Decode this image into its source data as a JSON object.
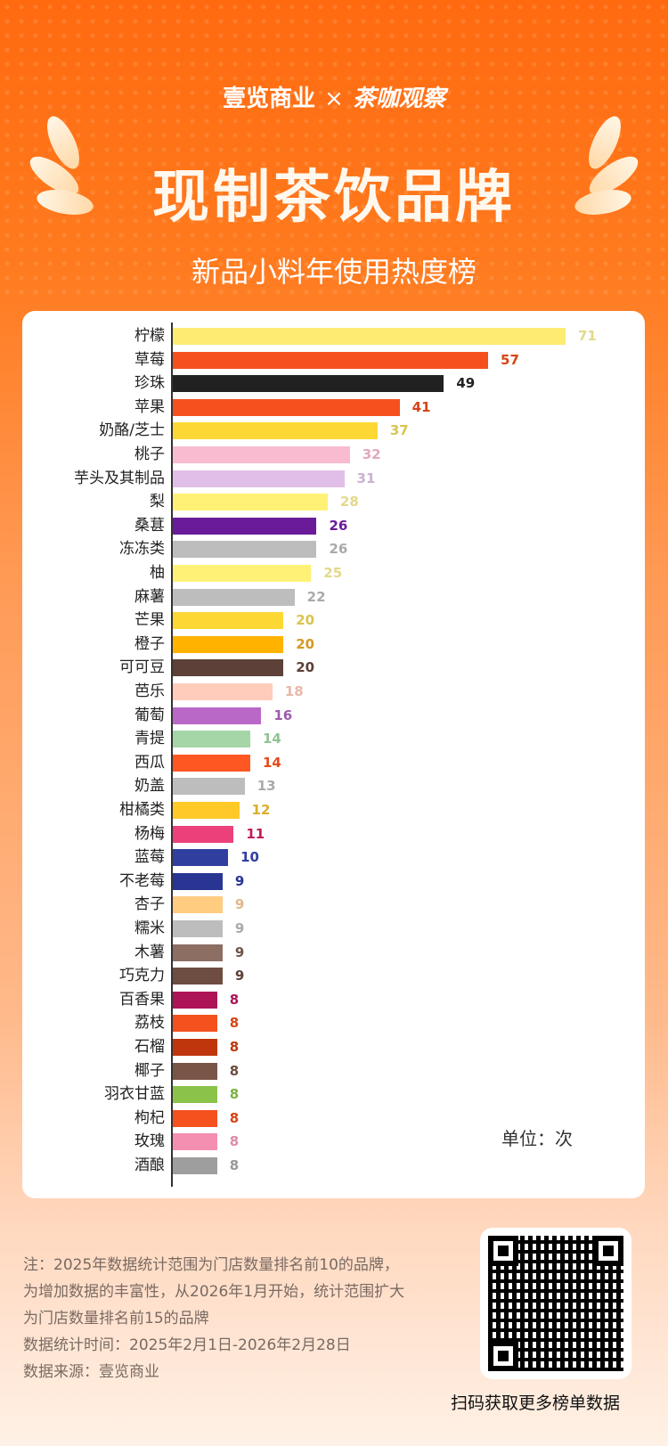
{
  "header": {
    "brand_left": "壹览商业",
    "brand_x": "×",
    "brand_right": "茶咖观察",
    "title": "现制茶饮品牌",
    "subtitle": "新品小料年使用热度榜"
  },
  "chart_data": {
    "type": "bar",
    "orientation": "horizontal",
    "title": "现制茶饮品牌 新品小料年使用热度榜",
    "unit": "单位：次",
    "xlim": [
      0,
      71
    ],
    "categories": [
      "柠檬",
      "草莓",
      "珍珠",
      "苹果",
      "奶酪/芝士",
      "桃子",
      "芋头及其制品",
      "梨",
      "桑葚",
      "冻冻类",
      "柚",
      "麻薯",
      "芒果",
      "橙子",
      "可可豆",
      "芭乐",
      "葡萄",
      "青提",
      "西瓜",
      "奶盖",
      "柑橘类",
      "杨梅",
      "蓝莓",
      "不老莓",
      "杏子",
      "糯米",
      "木薯",
      "巧克力",
      "百香果",
      "荔枝",
      "石榴",
      "椰子",
      "羽衣甘蓝",
      "枸杞",
      "玫瑰",
      "酒酿"
    ],
    "values": [
      71,
      57,
      49,
      41,
      37,
      32,
      31,
      28,
      26,
      26,
      25,
      22,
      20,
      20,
      20,
      18,
      16,
      14,
      14,
      13,
      12,
      11,
      10,
      9,
      9,
      9,
      9,
      9,
      8,
      8,
      8,
      8,
      8,
      8,
      8,
      8
    ],
    "colors": [
      "#FDEB72",
      "#F4511E",
      "#212121",
      "#F4511E",
      "#FDD835",
      "#F8BBD0",
      "#E1BEE7",
      "#FFF176",
      "#6A1B9A",
      "#BDBDBD",
      "#FFF176",
      "#BDBDBD",
      "#FDD835",
      "#FFB300",
      "#5D4037",
      "#FFCCBC",
      "#BA68C8",
      "#A5D6A7",
      "#FF5722",
      "#BDBDBD",
      "#FFCA28",
      "#EC407A",
      "#303F9F",
      "#283593",
      "#FFCC80",
      "#BDBDBD",
      "#8D6E63",
      "#6D4C41",
      "#AD1457",
      "#F4511E",
      "#BF360C",
      "#795548",
      "#8BC34A",
      "#F4511E",
      "#F48FB1",
      "#9E9E9E"
    ],
    "label_colors": [
      "#E3D98A",
      "#D84315",
      "#212121",
      "#D84315",
      "#D9C44E",
      "#E2A9BC",
      "#CBB0D2",
      "#E3D98A",
      "#6A1B9A",
      "#AAAAAA",
      "#E3D98A",
      "#AAAAAA",
      "#D9C44E",
      "#D49A20",
      "#5D4037",
      "#E8B8A8",
      "#9C5BAA",
      "#8FC391",
      "#E64A19",
      "#AAAAAA",
      "#D9AF2A",
      "#C2185B",
      "#303F9F",
      "#283593",
      "#E0B88A",
      "#AAAAAA",
      "#6D554A",
      "#5D4037",
      "#AD1457",
      "#D84315",
      "#BF360C",
      "#6D4C41",
      "#7CB342",
      "#D84315",
      "#E08AA8",
      "#999999"
    ]
  },
  "footer": {
    "notes": [
      "注：2025年数据统计范围为门店数量排名前10的品牌，",
      "为增加数据的丰富性，从2026年1月开始，统计范围扩大",
      "为门店数量排名前15的品牌",
      "数据统计时间：2025年2月1日-2026年2月28日",
      "数据来源：壹览商业"
    ],
    "qr_caption": "扫码获取更多榜单数据"
  }
}
